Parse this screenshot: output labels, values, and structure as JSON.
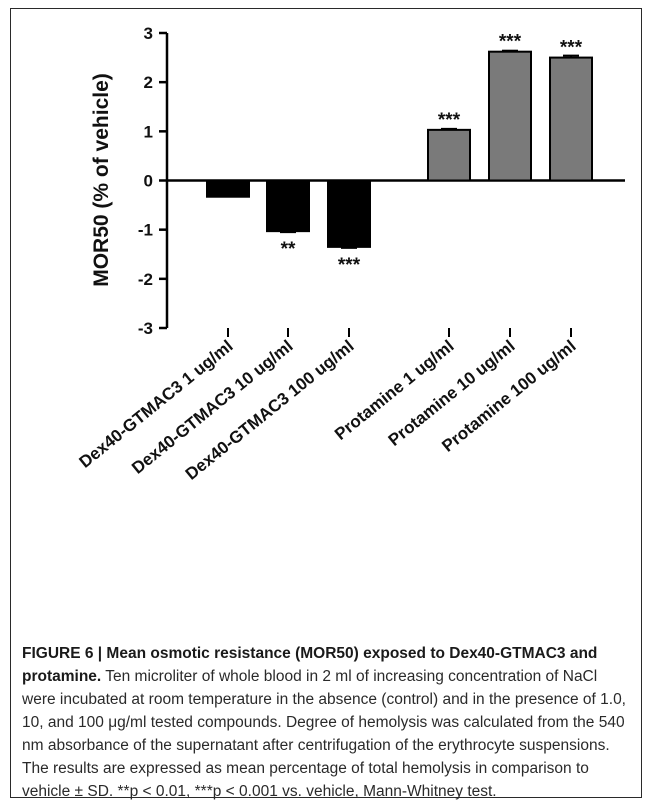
{
  "chart_data": {
    "type": "bar",
    "ylabel": "MOR50 (% of vehicle)",
    "ylim": [
      -3,
      3
    ],
    "yticks": [
      "3",
      "2",
      "1",
      "0",
      "-1",
      "-2",
      "-3"
    ],
    "categories": [
      "Dex40-GTMAC3 1 ug/ml",
      "Dex40-GTMAC3 10 ug/ml",
      "Dex40-GTMAC3 100 ug/ml",
      "Protamine 1 ug/ml",
      "Protamine 10 ug/ml",
      "Protamine 100 ug/ml"
    ],
    "values": [
      -0.33,
      -1.03,
      -1.35,
      1.03,
      2.62,
      2.5
    ],
    "errors": [
      0.0,
      0.02,
      0.02,
      0.02,
      0.02,
      0.04
    ],
    "significance": [
      "",
      "**",
      "***",
      "***",
      "***",
      "***"
    ],
    "colors": [
      "#000000",
      "#000000",
      "#000000",
      "#7a7a7a",
      "#7a7a7a",
      "#7a7a7a"
    ],
    "grid": false
  },
  "caption": {
    "title": "FIGURE 6 | Mean osmotic resistance (MOR50) exposed to Dex40-GTMAC3 and protamine.",
    "body": " Ten microliter of whole blood in 2 ml of increasing concentration of NaCl were incubated at room temperature in the absence (control) and in the presence of 1.0, 10, and 100 μg/ml tested compounds. Degree of hemolysis was calculated from the 540 nm absorbance of the supernatant after centrifugation of the erythrocyte suspensions. The results are expressed as mean percentage of total hemolysis in comparison to vehicle ± SD. **p < 0.01, ***p < 0.001 vs. vehicle, Mann-Whitney test."
  }
}
